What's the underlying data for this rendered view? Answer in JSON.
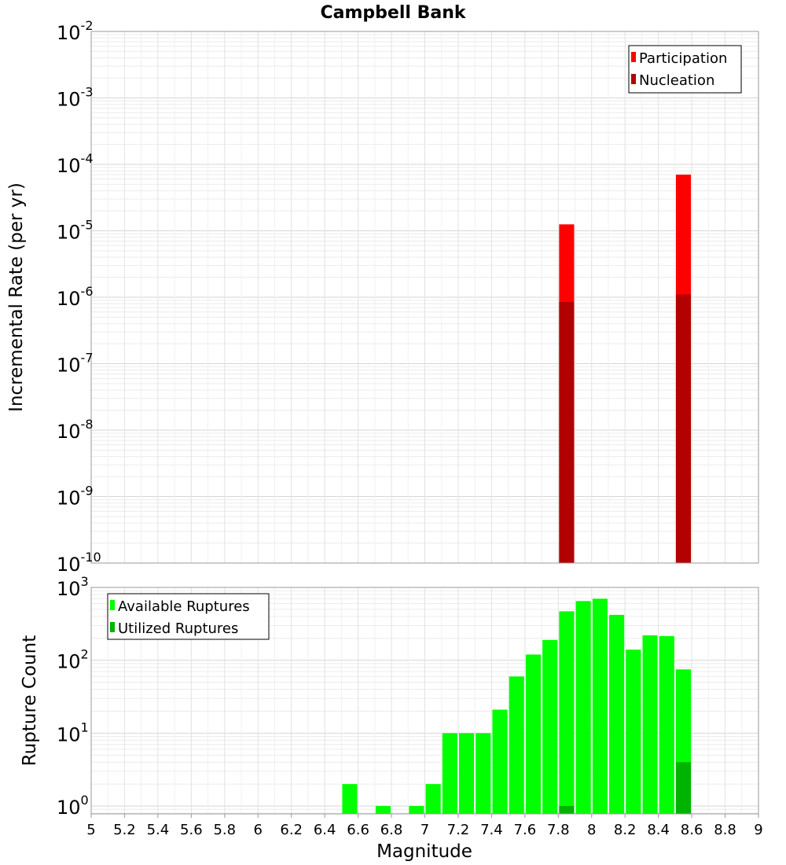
{
  "chart_data": [
    {
      "type": "bar",
      "title": "Campbell Bank",
      "ylabel": "Incremental Rate (per yr)",
      "y_scale": "log",
      "ylim": [
        1e-10,
        0.01
      ],
      "xlim": [
        5,
        9
      ],
      "y_ticks": [
        {
          "base": "10",
          "exp": "-2",
          "value": 0.01
        },
        {
          "base": "10",
          "exp": "-3",
          "value": 0.001
        },
        {
          "base": "10",
          "exp": "-4",
          "value": 0.0001
        },
        {
          "base": "10",
          "exp": "-5",
          "value": 1e-05
        },
        {
          "base": "10",
          "exp": "-6",
          "value": 1e-06
        },
        {
          "base": "10",
          "exp": "-7",
          "value": 1e-07
        },
        {
          "base": "10",
          "exp": "-8",
          "value": 1e-08
        },
        {
          "base": "10",
          "exp": "-9",
          "value": 1e-09
        },
        {
          "base": "10",
          "exp": "-10",
          "value": 1e-10
        }
      ],
      "legend_position": "top-right",
      "grid": true,
      "series": [
        {
          "name": "Participation",
          "color": "#ff0000",
          "x": [
            7.85,
            8.55
          ],
          "values": [
            1.25e-05,
            7e-05
          ]
        },
        {
          "name": "Nucleation",
          "color": "#b30000",
          "x": [
            7.85,
            8.55
          ],
          "values": [
            8.5e-07,
            1.1e-06
          ]
        }
      ]
    },
    {
      "type": "bar",
      "xlabel": "Magnitude",
      "ylabel": "Rupture Count",
      "y_scale": "log",
      "ylim": [
        0.78,
        1000
      ],
      "xlim": [
        5,
        9
      ],
      "x_ticks": [
        "5",
        "5.2",
        "5.4",
        "5.6",
        "5.8",
        "6",
        "6.2",
        "6.4",
        "6.6",
        "6.8",
        "7",
        "7.2",
        "7.4",
        "7.6",
        "7.8",
        "8",
        "8.2",
        "8.4",
        "8.6",
        "8.8",
        "9"
      ],
      "y_ticks": [
        {
          "base": "10",
          "exp": "3",
          "value": 1000
        },
        {
          "base": "10",
          "exp": "2",
          "value": 100
        },
        {
          "base": "10",
          "exp": "1",
          "value": 10
        },
        {
          "base": "10",
          "exp": "0",
          "value": 1
        }
      ],
      "legend_position": "top-left",
      "grid": true,
      "series": [
        {
          "name": "Available Ruptures",
          "color": "#00ff00",
          "x": [
            6.55,
            6.75,
            6.95,
            7.05,
            7.15,
            7.25,
            7.35,
            7.45,
            7.55,
            7.65,
            7.75,
            7.85,
            7.95,
            8.05,
            8.15,
            8.25,
            8.35,
            8.45,
            8.55
          ],
          "values": [
            2,
            1,
            1,
            2,
            10,
            10,
            10,
            21,
            60,
            120,
            190,
            470,
            650,
            700,
            420,
            140,
            220,
            215,
            75
          ]
        },
        {
          "name": "Utilized Ruptures",
          "color": "#00b300",
          "x": [
            7.85,
            8.55
          ],
          "values": [
            1,
            4
          ]
        }
      ]
    }
  ]
}
